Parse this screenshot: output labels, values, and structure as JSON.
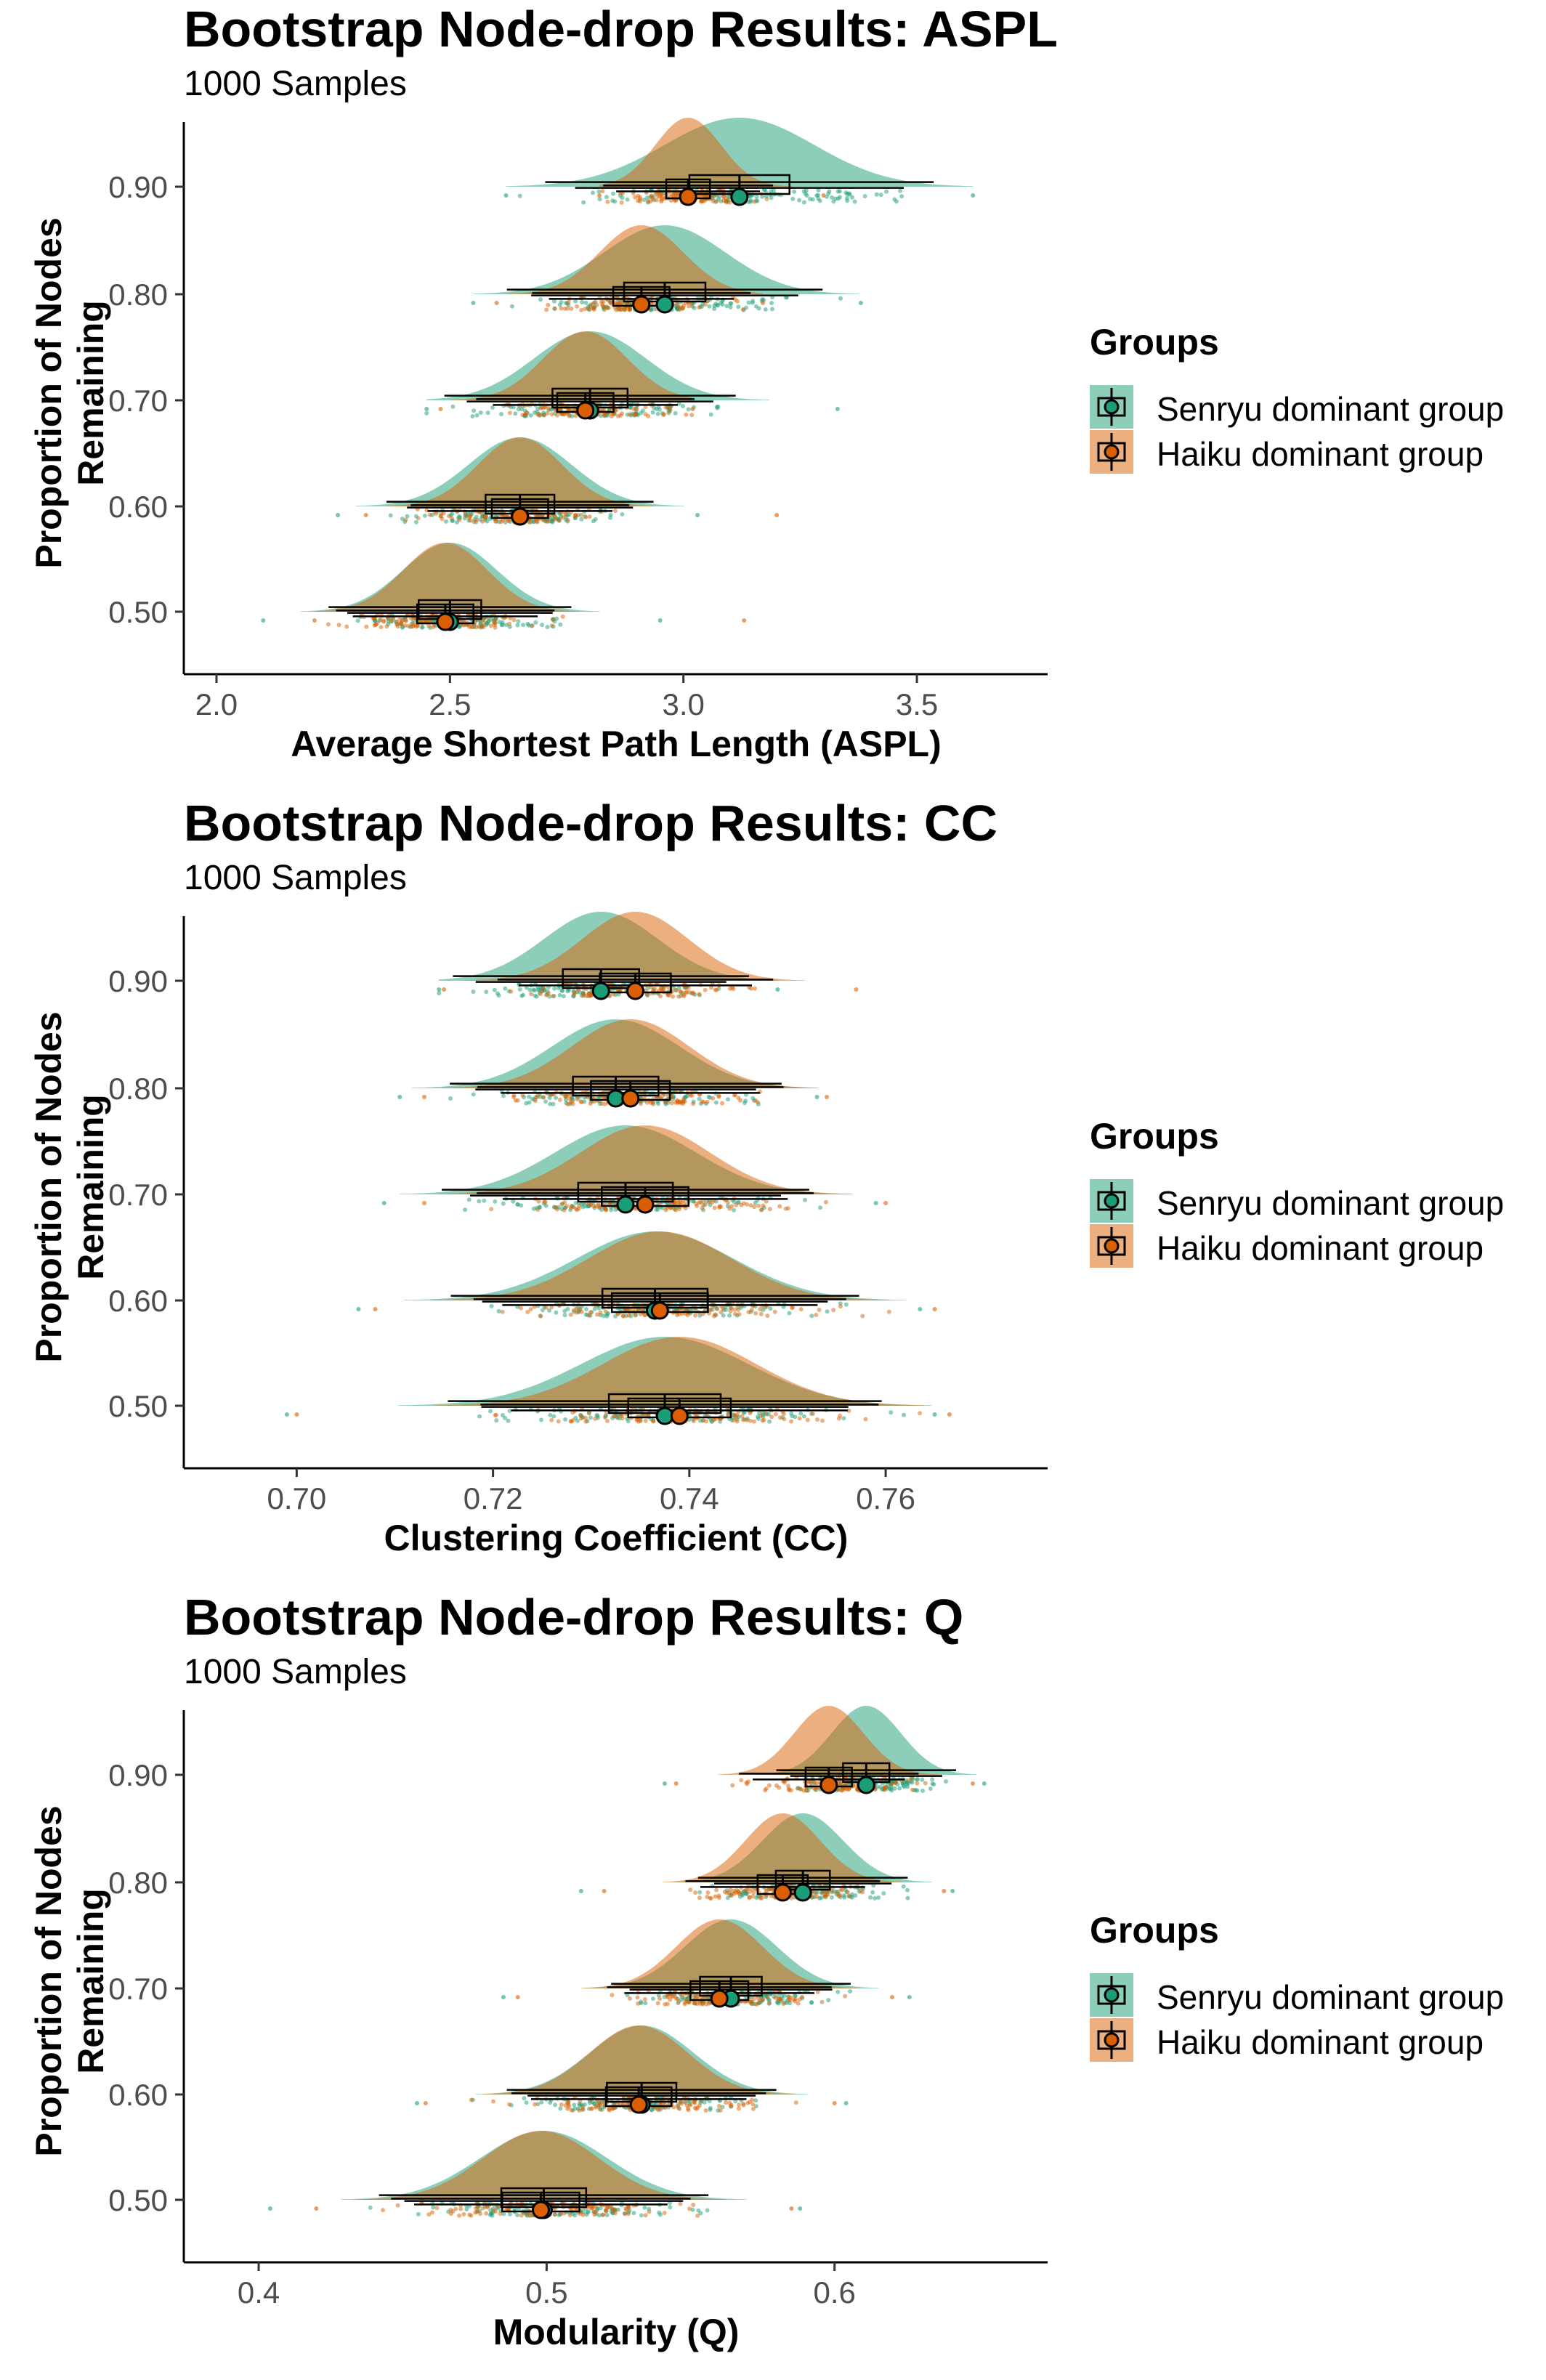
{
  "legend": {
    "title": "Groups",
    "items": [
      {
        "label": "Senryu dominant group",
        "color": "#1b9e77"
      },
      {
        "label": "Haiku dominant group",
        "color": "#d95f02"
      }
    ]
  },
  "chart_data": [
    {
      "type": "raincloud",
      "title": "Bootstrap Node-drop Results: ASPL",
      "subtitle": "1000 Samples",
      "xlabel": "Average Shortest Path Length (ASPL)",
      "ylabel": "Proportion of Nodes Remaining",
      "xlim": [
        1.93,
        3.78
      ],
      "xticks": [
        2.0,
        2.5,
        3.0,
        3.5
      ],
      "xtick_labels": [
        "2.0",
        "2.5",
        "3.0",
        "3.5"
      ],
      "categories": [
        "0.50",
        "0.60",
        "0.70",
        "0.80",
        "0.90"
      ],
      "legend_position": "right",
      "grid": false,
      "series": [
        {
          "name": "Senryu dominant group",
          "color": "#1b9e77",
          "mean": [
            2.5,
            2.65,
            2.8,
            2.96,
            3.12
          ],
          "sd": [
            0.1,
            0.11,
            0.12,
            0.13,
            0.16
          ],
          "min": [
            2.1,
            2.26,
            2.45,
            2.55,
            2.62
          ],
          "max": [
            2.95,
            3.03,
            3.33,
            3.38,
            3.62
          ]
        },
        {
          "name": "Haiku dominant group",
          "color": "#d95f02",
          "mean": [
            2.49,
            2.65,
            2.79,
            2.91,
            3.01
          ],
          "sd": [
            0.09,
            0.09,
            0.09,
            0.09,
            0.07
          ],
          "min": [
            2.21,
            2.32,
            2.48,
            2.6,
            2.82
          ],
          "max": [
            3.13,
            3.2,
            3.02,
            3.17,
            3.3
          ]
        }
      ]
    },
    {
      "type": "raincloud",
      "title": "Bootstrap Node-drop Results: CC",
      "subtitle": "1000 Samples",
      "xlabel": "Clustering Coefficient (CC)",
      "ylabel": "Proportion of Nodes Remaining",
      "xlim": [
        0.6885,
        0.7765
      ],
      "xticks": [
        0.7,
        0.72,
        0.74,
        0.76
      ],
      "xtick_labels": [
        "0.70",
        "0.72",
        "0.74",
        "0.76"
      ],
      "categories": [
        "0.50",
        "0.60",
        "0.70",
        "0.80",
        "0.90"
      ],
      "legend_position": "right",
      "grid": false,
      "series": [
        {
          "name": "Senryu dominant group",
          "color": "#1b9e77",
          "mean": [
            0.7375,
            0.7365,
            0.7335,
            0.7325,
            0.731
          ],
          "sd": [
            0.0085,
            0.008,
            0.0072,
            0.0065,
            0.0058
          ],
          "min": [
            0.699,
            0.7063,
            0.7089,
            0.7105,
            0.7145
          ],
          "max": [
            0.765,
            0.7635,
            0.759,
            0.753,
            0.749
          ]
        },
        {
          "name": "Haiku dominant group",
          "color": "#d95f02",
          "mean": [
            0.739,
            0.737,
            0.7355,
            0.734,
            0.7345
          ],
          "sd": [
            0.0078,
            0.0073,
            0.0066,
            0.006,
            0.0054
          ],
          "min": [
            0.7,
            0.708,
            0.713,
            0.713,
            0.715
          ],
          "max": [
            0.7665,
            0.765,
            0.76,
            0.754,
            0.757
          ]
        }
      ]
    },
    {
      "type": "raincloud",
      "title": "Bootstrap Node-drop Results: Q",
      "subtitle": "1000 Samples",
      "xlabel": "Modularity (Q)",
      "ylabel": "Proportion of Nodes Remaining",
      "xlim": [
        0.374,
        0.674
      ],
      "xticks": [
        0.4,
        0.5,
        0.6
      ],
      "xtick_labels": [
        "0.4",
        "0.5",
        "0.6"
      ],
      "categories": [
        "0.50",
        "0.60",
        "0.70",
        "0.80",
        "0.90"
      ],
      "legend_position": "right",
      "grid": false,
      "series": [
        {
          "name": "Senryu dominant group",
          "color": "#1b9e77",
          "mean": [
            0.499,
            0.533,
            0.564,
            0.589,
            0.611
          ],
          "sd": [
            0.022,
            0.018,
            0.016,
            0.014,
            0.012
          ],
          "min": [
            0.404,
            0.455,
            0.485,
            0.512,
            0.541
          ],
          "max": [
            0.588,
            0.604,
            0.626,
            0.641,
            0.652
          ]
        },
        {
          "name": "Haiku dominant group",
          "color": "#d95f02",
          "mean": [
            0.498,
            0.532,
            0.56,
            0.582,
            0.598
          ],
          "sd": [
            0.02,
            0.017,
            0.015,
            0.013,
            0.012
          ],
          "min": [
            0.42,
            0.458,
            0.49,
            0.52,
            0.545
          ],
          "max": [
            0.585,
            0.6,
            0.62,
            0.638,
            0.648
          ]
        }
      ]
    }
  ]
}
